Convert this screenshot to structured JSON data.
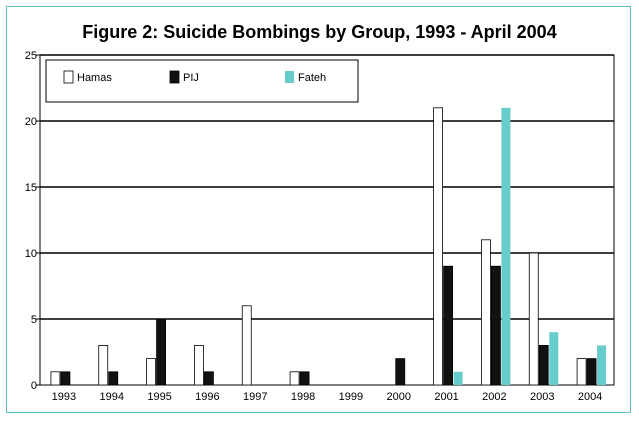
{
  "chart_data": {
    "type": "bar",
    "title": "Figure 2: Suicide Bombings by Group, 1993 - April 2004",
    "xlabel": "",
    "ylabel": "",
    "categories": [
      "1993",
      "1994",
      "1995",
      "1996",
      "1997",
      "1998",
      "1999",
      "2000",
      "2001",
      "2002",
      "2003",
      "2004"
    ],
    "series": [
      {
        "name": "Hamas",
        "color": "#ffffff",
        "values": [
          1,
          3,
          2,
          3,
          6,
          1,
          0,
          0,
          21,
          11,
          10,
          2
        ]
      },
      {
        "name": "PIJ",
        "color": "#111111",
        "values": [
          1,
          1,
          5,
          1,
          0,
          1,
          0,
          2,
          9,
          9,
          3,
          2
        ]
      },
      {
        "name": "Fateh",
        "color": "#66cccc",
        "values": [
          0,
          0,
          0,
          0,
          0,
          0,
          0,
          0,
          1,
          21,
          4,
          3
        ]
      }
    ],
    "ylim": [
      0,
      25
    ],
    "yticks": [
      0,
      5,
      10,
      15,
      20,
      25
    ],
    "grid": true,
    "legend_position": "top-left"
  }
}
